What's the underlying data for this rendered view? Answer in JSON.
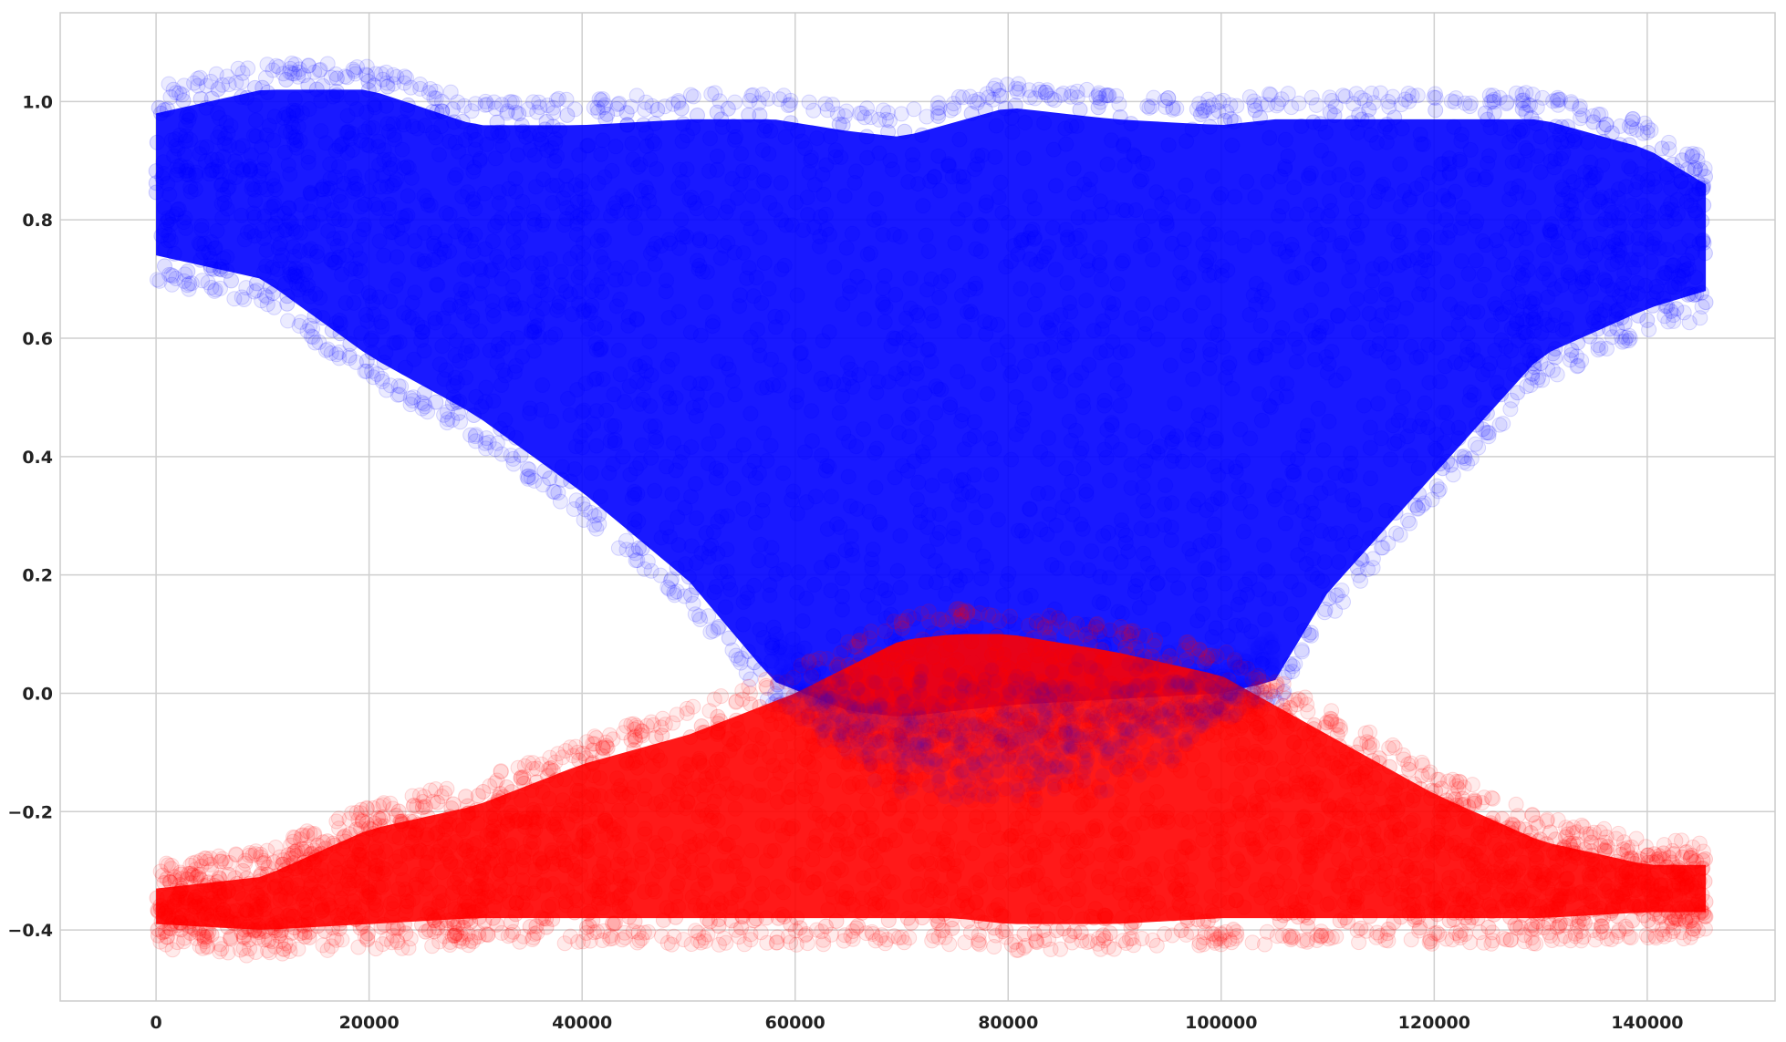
{
  "chart_data": {
    "type": "scatter",
    "title": "",
    "xlabel": "",
    "ylabel": "",
    "xlim": [
      -9000,
      152000
    ],
    "ylim": [
      -0.52,
      1.15
    ],
    "grid": true,
    "legend": "none",
    "marker": "circle",
    "marker_alpha": 0.12,
    "x_ticks": [
      {
        "value": 0,
        "label": "0"
      },
      {
        "value": 20000,
        "label": "20000"
      },
      {
        "value": 40000,
        "label": "40000"
      },
      {
        "value": 60000,
        "label": "60000"
      },
      {
        "value": 80000,
        "label": "80000"
      },
      {
        "value": 100000,
        "label": "100000"
      },
      {
        "value": 120000,
        "label": "120000"
      },
      {
        "value": 140000,
        "label": "140000"
      }
    ],
    "y_ticks": [
      {
        "value": 1.0,
        "label": "1.0"
      },
      {
        "value": 0.8,
        "label": "0.8"
      },
      {
        "value": 0.6,
        "label": "0.6"
      },
      {
        "value": 0.4,
        "label": "0.4"
      },
      {
        "value": 0.2,
        "label": "0.2"
      },
      {
        "value": 0.0,
        "label": "0.0"
      },
      {
        "value": -0.2,
        "label": "−0.2"
      },
      {
        "value": -0.4,
        "label": "−0.4"
      }
    ],
    "series": [
      {
        "color": "#0000ff",
        "envelope": {
          "x": [
            0,
            10000,
            20000,
            30000,
            40000,
            50000,
            58000,
            65000,
            70000,
            80000,
            90000,
            100000,
            105000,
            110000,
            120000,
            130000,
            140000,
            145500
          ],
          "lower": [
            0.72,
            0.68,
            0.55,
            0.45,
            0.32,
            0.17,
            0.0,
            -0.05,
            -0.06,
            -0.04,
            -0.03,
            -0.02,
            0.0,
            0.15,
            0.35,
            0.55,
            0.63,
            0.66
          ],
          "upper": [
            1.0,
            1.04,
            1.04,
            0.98,
            0.98,
            0.99,
            0.99,
            0.97,
            0.96,
            1.01,
            0.99,
            0.98,
            0.99,
            0.99,
            0.99,
            0.99,
            0.94,
            0.88
          ],
          "dense_lower": [
            0.72,
            0.68,
            0.55,
            0.45,
            0.32,
            0.17,
            0.0,
            0.0,
            0.0,
            0.0,
            0.0,
            0.0,
            0.0,
            0.15,
            0.35,
            0.55,
            0.63,
            0.66
          ]
        }
      },
      {
        "color": "#ff0000",
        "envelope": {
          "x": [
            0,
            10000,
            20000,
            30000,
            40000,
            50000,
            60000,
            70000,
            75000,
            80000,
            90000,
            100000,
            110000,
            120000,
            130000,
            140000,
            145500
          ],
          "lower": [
            -0.41,
            -0.42,
            -0.41,
            -0.4,
            -0.4,
            -0.4,
            -0.4,
            -0.4,
            -0.4,
            -0.41,
            -0.41,
            -0.4,
            -0.4,
            -0.4,
            -0.4,
            -0.39,
            -0.39
          ],
          "upper": [
            -0.31,
            -0.29,
            -0.21,
            -0.17,
            -0.1,
            -0.05,
            0.02,
            0.11,
            0.12,
            0.12,
            0.09,
            0.05,
            -0.05,
            -0.15,
            -0.23,
            -0.27,
            -0.27
          ]
        }
      }
    ]
  }
}
